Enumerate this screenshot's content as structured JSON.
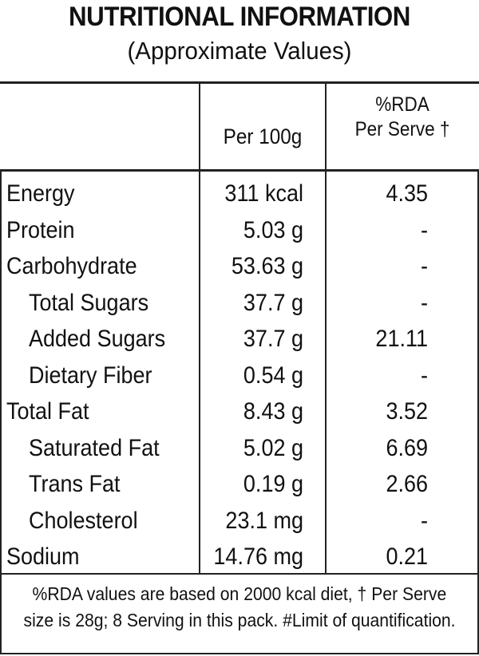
{
  "title": "NUTRITIONAL INFORMATION",
  "subtitle": "(Approximate Values)",
  "headers": {
    "per100": "Per 100g",
    "rda_line1": "%RDA",
    "rda_line2": "Per Serve †"
  },
  "rows": [
    {
      "name": "Energy",
      "per100": "311 kcal",
      "rda": "4.35",
      "indent": false
    },
    {
      "name": "Protein",
      "per100": "5.03 g",
      "rda": "-",
      "indent": false
    },
    {
      "name": "Carbohydrate",
      "per100": "53.63 g",
      "rda": "-",
      "indent": false
    },
    {
      "name": "Total Sugars",
      "per100": "37.7 g",
      "rda": "-",
      "indent": true
    },
    {
      "name": "Added Sugars",
      "per100": "37.7 g",
      "rda": "21.11",
      "indent": true
    },
    {
      "name": "Dietary Fiber",
      "per100": "0.54 g",
      "rda": "-",
      "indent": true
    },
    {
      "name": "Total Fat",
      "per100": "8.43 g",
      "rda": "3.52",
      "indent": false
    },
    {
      "name": "Saturated Fat",
      "per100": "5.02 g",
      "rda": "6.69",
      "indent": true
    },
    {
      "name": "Trans Fat",
      "per100": "0.19 g",
      "rda": "2.66",
      "indent": true
    },
    {
      "name": "Cholesterol",
      "per100": "23.1 mg",
      "rda": "-",
      "indent": true
    },
    {
      "name": "Sodium",
      "per100": "14.76 mg",
      "rda": "0.21",
      "indent": false
    }
  ],
  "footnote": {
    "line1": "%RDA values are based on 2000 kcal diet, † Per Serve",
    "line2": "size is 28g; 8 Serving in this pack. #Limit of quantification."
  }
}
